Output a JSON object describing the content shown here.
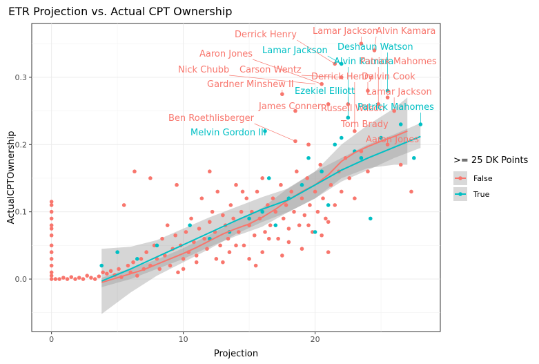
{
  "chart_data": {
    "type": "scatter",
    "title": "ETR Projection vs. Actual CPT Ownership",
    "xlabel": "Projection",
    "ylabel": "ActualCPTOwnership",
    "xlim": [
      -1.5,
      29.5
    ],
    "ylim": [
      -0.078,
      0.38
    ],
    "x_ticks": [
      0,
      10,
      20
    ],
    "y_ticks": [
      0.0,
      0.1,
      0.2,
      0.3
    ],
    "x_tick_labels": [
      "0",
      "10",
      "20"
    ],
    "y_tick_labels": [
      "0.0",
      "0.1",
      "0.2",
      "0.3"
    ],
    "grid": true,
    "legend": {
      "title": ">= 25 DK Points",
      "placement": "right",
      "entries": [
        {
          "label": "False",
          "color": "#F8766D"
        },
        {
          "label": "True",
          "color": "#00BFC4"
        }
      ]
    },
    "series": [
      {
        "name": "False",
        "color": "#F8766D",
        "points": [
          [
            0,
            0.115
          ],
          [
            0,
            0.11
          ],
          [
            0,
            0.1
          ],
          [
            0,
            0.09
          ],
          [
            0,
            0.08
          ],
          [
            0,
            0.075
          ],
          [
            0,
            0.065
          ],
          [
            0,
            0.05
          ],
          [
            0,
            0.04
          ],
          [
            0,
            0.03
          ],
          [
            0,
            0.02
          ],
          [
            0,
            0.01
          ],
          [
            0,
            0.005
          ],
          [
            0,
            0.0
          ],
          [
            0.3,
            0.0
          ],
          [
            0.6,
            0.0
          ],
          [
            0.9,
            0.002
          ],
          [
            1.2,
            0.0
          ],
          [
            1.5,
            0.003
          ],
          [
            1.8,
            0.0
          ],
          [
            2.1,
            0.002
          ],
          [
            2.4,
            0.0
          ],
          [
            2.7,
            0.005
          ],
          [
            3.0,
            0.002
          ],
          [
            3.3,
            0.0
          ],
          [
            3.6,
            0.004
          ],
          [
            3.9,
            0.01
          ],
          [
            4.2,
            0.008
          ],
          [
            4.5,
            0.012
          ],
          [
            4.8,
            0.006
          ],
          [
            5.1,
            0.015
          ],
          [
            5.3,
            0.003
          ],
          [
            5.5,
            0.11
          ],
          [
            5.8,
            0.02
          ],
          [
            6.0,
            0.01
          ],
          [
            6.2,
            0.025
          ],
          [
            6.5,
            0.005
          ],
          [
            6.8,
            0.03
          ],
          [
            7.0,
            0.015
          ],
          [
            7.2,
            0.04
          ],
          [
            7.5,
            0.02
          ],
          [
            7.8,
            0.05
          ],
          [
            8.0,
            0.03
          ],
          [
            8.2,
            0.015
          ],
          [
            8.4,
            0.06
          ],
          [
            8.6,
            0.035
          ],
          [
            8.8,
            0.08
          ],
          [
            9.0,
            0.02
          ],
          [
            9.2,
            0.045
          ],
          [
            9.4,
            0.065
          ],
          [
            9.6,
            0.01
          ],
          [
            9.8,
            0.05
          ],
          [
            10.0,
            0.03
          ],
          [
            10.2,
            0.07
          ],
          [
            10.4,
            0.04
          ],
          [
            10.6,
            0.09
          ],
          [
            10.8,
            0.055
          ],
          [
            11.0,
            0.035
          ],
          [
            11.2,
            0.075
          ],
          [
            11.4,
            0.12
          ],
          [
            11.6,
            0.06
          ],
          [
            11.8,
            0.045
          ],
          [
            12.0,
            0.085
          ],
          [
            12.2,
            0.1
          ],
          [
            12.4,
            0.07
          ],
          [
            12.6,
            0.13
          ],
          [
            12.8,
            0.05
          ],
          [
            13.0,
            0.095
          ],
          [
            13.2,
            0.08
          ],
          [
            13.4,
            0.06
          ],
          [
            13.6,
            0.11
          ],
          [
            13.8,
            0.09
          ],
          [
            14.0,
            0.14
          ],
          [
            14.2,
            0.07
          ],
          [
            14.4,
            0.1
          ],
          [
            14.6,
            0.05
          ],
          [
            14.8,
            0.12
          ],
          [
            15.0,
            0.08
          ],
          [
            15.2,
            0.1
          ],
          [
            15.4,
            0.065
          ],
          [
            15.6,
            0.13
          ],
          [
            15.8,
            0.09
          ],
          [
            16.0,
            0.15
          ],
          [
            16.2,
            0.07
          ],
          [
            16.4,
            0.11
          ],
          [
            16.6,
            0.08
          ],
          [
            16.8,
            0.12
          ],
          [
            17.0,
            0.1
          ],
          [
            17.2,
            0.06
          ],
          [
            17.4,
            0.14
          ],
          [
            17.6,
            0.09
          ],
          [
            17.8,
            0.11
          ],
          [
            18.0,
            0.075
          ],
          [
            18.2,
            0.13
          ],
          [
            18.4,
            0.1
          ],
          [
            18.6,
            0.16
          ],
          [
            18.8,
            0.08
          ],
          [
            19.0,
            0.12
          ],
          [
            19.2,
            0.095
          ],
          [
            19.4,
            0.15
          ],
          [
            19.6,
            0.11
          ],
          [
            19.8,
            0.07
          ],
          [
            20.0,
            0.13
          ],
          [
            20.2,
            0.1
          ],
          [
            20.4,
            0.17
          ],
          [
            20.6,
            0.12
          ],
          [
            20.8,
            0.09
          ],
          [
            21.0,
            0.04
          ],
          [
            21.2,
            0.14
          ],
          [
            21.5,
            0.11
          ],
          [
            21.8,
            0.16
          ],
          [
            22.0,
            0.13
          ],
          [
            22.3,
            0.18
          ],
          [
            22.6,
            0.15
          ],
          [
            23.0,
            0.12
          ],
          [
            23.5,
            0.19
          ],
          [
            24.0,
            0.16
          ],
          [
            25.5,
            0.2
          ],
          [
            26.5,
            0.17
          ],
          [
            27.3,
            0.13
          ],
          [
            6.3,
            0.16
          ],
          [
            7.5,
            0.15
          ],
          [
            9.5,
            0.14
          ],
          [
            12.0,
            0.16
          ],
          [
            14.5,
            0.13
          ],
          [
            13.0,
            0.025
          ],
          [
            15.0,
            0.03
          ],
          [
            16.0,
            0.04
          ],
          [
            14.0,
            0.05
          ],
          [
            15.5,
            0.02
          ],
          [
            11.0,
            0.025
          ],
          [
            12.5,
            0.03
          ],
          [
            10.0,
            0.015
          ],
          [
            13.5,
            0.04
          ],
          [
            16.5,
            0.06
          ],
          [
            17.5,
            0.035
          ],
          [
            18.0,
            0.055
          ],
          [
            19.0,
            0.045
          ],
          [
            20.5,
            0.065
          ],
          [
            21.0,
            0.085
          ],
          [
            19.5,
            0.08
          ],
          [
            18.5,
            0.25
          ],
          [
            19.5,
            0.2
          ],
          [
            20.5,
            0.29
          ],
          [
            21.5,
            0.32
          ],
          [
            22.0,
            0.3
          ],
          [
            23.5,
            0.35
          ],
          [
            24.5,
            0.34
          ],
          [
            24.0,
            0.28
          ],
          [
            25.5,
            0.27
          ],
          [
            21.0,
            0.26
          ],
          [
            22.5,
            0.24
          ],
          [
            23.0,
            0.22
          ],
          [
            24.8,
            0.26
          ],
          [
            26.0,
            0.25
          ],
          [
            17.5,
            0.275
          ],
          [
            18.5,
            0.205
          ],
          [
            19.5,
            0.2
          ],
          [
            22.5,
            0.26
          ]
        ]
      },
      {
        "name": "True",
        "color": "#00BFC4",
        "points": [
          [
            3.8,
            0.02
          ],
          [
            5.0,
            0.04
          ],
          [
            6.5,
            0.03
          ],
          [
            8.0,
            0.05
          ],
          [
            10.5,
            0.08
          ],
          [
            12.0,
            0.06
          ],
          [
            13.5,
            0.07
          ],
          [
            15.0,
            0.09
          ],
          [
            16.0,
            0.1
          ],
          [
            16.5,
            0.15
          ],
          [
            17.0,
            0.08
          ],
          [
            18.0,
            0.12
          ],
          [
            19.0,
            0.14
          ],
          [
            19.5,
            0.18
          ],
          [
            20.0,
            0.07
          ],
          [
            20.5,
            0.16
          ],
          [
            21.0,
            0.11
          ],
          [
            21.5,
            0.2
          ],
          [
            22.0,
            0.21
          ],
          [
            22.5,
            0.24
          ],
          [
            23.0,
            0.19
          ],
          [
            23.5,
            0.18
          ],
          [
            24.2,
            0.09
          ],
          [
            25.0,
            0.21
          ],
          [
            25.5,
            0.28
          ],
          [
            26.5,
            0.23
          ],
          [
            27.5,
            0.18
          ],
          [
            28.0,
            0.23
          ],
          [
            22.0,
            0.32
          ],
          [
            16.2,
            0.22
          ]
        ]
      }
    ],
    "trend_lines": [
      {
        "name": "False",
        "color": "#F8766D",
        "points": [
          [
            3.8,
            -0.005
          ],
          [
            5,
            0.002
          ],
          [
            6,
            0.008
          ],
          [
            7,
            0.014
          ],
          [
            8,
            0.022
          ],
          [
            9,
            0.03
          ],
          [
            10,
            0.038
          ],
          [
            11,
            0.047
          ],
          [
            12,
            0.057
          ],
          [
            13,
            0.067
          ],
          [
            14,
            0.075
          ],
          [
            15,
            0.082
          ],
          [
            16,
            0.092
          ],
          [
            17,
            0.104
          ],
          [
            18,
            0.118
          ],
          [
            19,
            0.13
          ],
          [
            20,
            0.14
          ],
          [
            21,
            0.155
          ],
          [
            22,
            0.175
          ],
          [
            23,
            0.188
          ],
          [
            24,
            0.197
          ],
          [
            25,
            0.205
          ],
          [
            26,
            0.212
          ],
          [
            27,
            0.22
          ]
        ],
        "band": [
          [
            3.8,
            -0.012,
            0.002
          ],
          [
            6,
            0.0,
            0.016
          ],
          [
            8,
            0.015,
            0.029
          ],
          [
            10,
            0.03,
            0.046
          ],
          [
            12,
            0.048,
            0.066
          ],
          [
            14,
            0.064,
            0.086
          ],
          [
            16,
            0.078,
            0.106
          ],
          [
            18,
            0.1,
            0.136
          ],
          [
            20,
            0.12,
            0.16
          ],
          [
            22,
            0.15,
            0.2
          ],
          [
            24,
            0.165,
            0.229
          ],
          [
            26,
            0.17,
            0.254
          ],
          [
            27,
            0.17,
            0.27
          ]
        ]
      },
      {
        "name": "True",
        "color": "#00BFC4",
        "points": [
          [
            3.8,
            -0.003
          ],
          [
            6,
            0.015
          ],
          [
            8,
            0.033
          ],
          [
            10,
            0.051
          ],
          [
            12,
            0.069
          ],
          [
            14,
            0.087
          ],
          [
            16,
            0.104
          ],
          [
            18,
            0.118
          ],
          [
            20,
            0.14
          ],
          [
            22,
            0.162
          ],
          [
            24,
            0.18
          ],
          [
            26,
            0.196
          ],
          [
            28,
            0.212
          ]
        ],
        "band": [
          [
            3.8,
            -0.052,
            0.045
          ],
          [
            6,
            -0.02,
            0.048
          ],
          [
            8,
            0.005,
            0.058
          ],
          [
            10,
            0.025,
            0.075
          ],
          [
            12,
            0.045,
            0.092
          ],
          [
            14,
            0.067,
            0.107
          ],
          [
            16,
            0.085,
            0.122
          ],
          [
            18,
            0.1,
            0.135
          ],
          [
            20,
            0.12,
            0.16
          ],
          [
            22,
            0.145,
            0.18
          ],
          [
            24,
            0.162,
            0.2
          ],
          [
            26,
            0.18,
            0.215
          ],
          [
            28,
            0.195,
            0.232
          ]
        ]
      }
    ],
    "annotations": [
      {
        "text": "Derrick Henry",
        "series": "False",
        "point": [
          21.5,
          0.32
        ]
      },
      {
        "text": "Lamar Jackson",
        "series": "False",
        "point": [
          23.5,
          0.35
        ]
      },
      {
        "text": "Alvin Kamara",
        "series": "False",
        "point": [
          24.5,
          0.34
        ]
      },
      {
        "text": "Deshaun Watson",
        "series": "True",
        "point": [
          25.5,
          0.28
        ]
      },
      {
        "text": "Lamar Jackson",
        "series": "True",
        "point": [
          22.0,
          0.32
        ]
      },
      {
        "text": "Aaron Jones",
        "series": "False",
        "point": [
          20.5,
          0.29
        ]
      },
      {
        "text": "Alvin Kamara",
        "series": "True",
        "point": [
          22.5,
          0.24
        ]
      },
      {
        "text": "Patrick Mahomes",
        "series": "False",
        "point": [
          24.8,
          0.26
        ]
      },
      {
        "text": "Nick Chubb",
        "series": "False",
        "point": [
          20.0,
          0.29
        ]
      },
      {
        "text": "Carson Wentz",
        "series": "False",
        "point": [
          22.0,
          0.3
        ]
      },
      {
        "text": "Derrick Henry",
        "series": "False",
        "point": [
          23.0,
          0.22
        ]
      },
      {
        "text": "Dalvin Cook",
        "series": "False",
        "point": [
          24.0,
          0.28
        ]
      },
      {
        "text": "Gardner Minshew II",
        "series": "False",
        "point": [
          17.5,
          0.275
        ]
      },
      {
        "text": "Ezekiel Elliott",
        "series": "True",
        "point": [
          22.5,
          0.24
        ]
      },
      {
        "text": "Lamar Jackson",
        "series": "False",
        "point": [
          26.0,
          0.25
        ]
      },
      {
        "text": "James Conner",
        "series": "False",
        "point": [
          20.5,
          0.26
        ]
      },
      {
        "text": "Russell Wilson",
        "series": "False",
        "point": [
          22.5,
          0.26
        ]
      },
      {
        "text": "Patrick Mahomes",
        "series": "True",
        "point": [
          28.0,
          0.23
        ]
      },
      {
        "text": "Ben Roethlisberger",
        "series": "False",
        "point": [
          18.5,
          0.205
        ]
      },
      {
        "text": "Tom Brady",
        "series": "False",
        "point": [
          23.0,
          0.22
        ]
      },
      {
        "text": "Melvin Gordon III",
        "series": "True",
        "point": [
          16.2,
          0.22
        ]
      },
      {
        "text": "Aaron Jones",
        "series": "False",
        "point": [
          25.5,
          0.2
        ]
      }
    ]
  }
}
